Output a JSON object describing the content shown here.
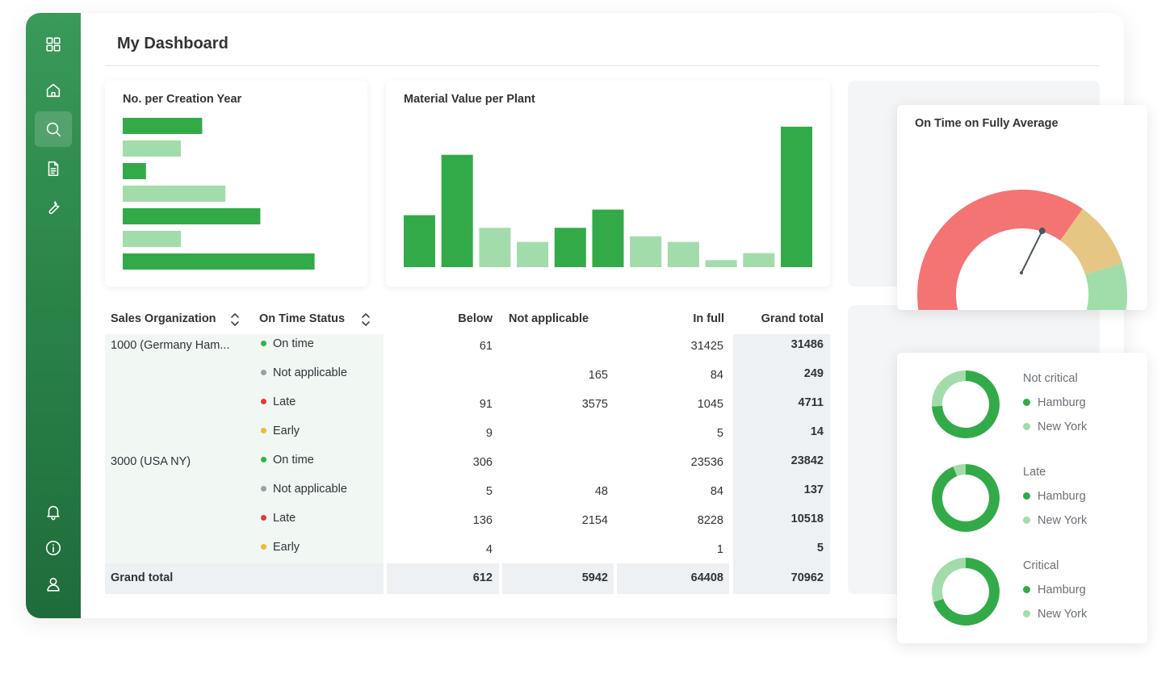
{
  "page": {
    "title": "My Dashboard"
  },
  "nav": {
    "top": [
      {
        "name": "dashboard-grid-icon"
      },
      {
        "name": "home-icon"
      },
      {
        "name": "search-icon",
        "active": true
      },
      {
        "name": "document-icon"
      },
      {
        "name": "wrench-icon"
      }
    ],
    "bottom": [
      {
        "name": "bell-icon"
      },
      {
        "name": "info-icon"
      },
      {
        "name": "user-icon"
      }
    ]
  },
  "colors": {
    "dark_green": "#33aa48",
    "light_green": "#a3dcab",
    "red": "#f47373",
    "amber": "#e5c683",
    "gauge_green": "#a0ddaa"
  },
  "chart_data": [
    {
      "type": "bar",
      "orientation": "horizontal",
      "title": "No. per Creation Year",
      "values": [
        41,
        30,
        12,
        53,
        71,
        30,
        99
      ],
      "shade": [
        "dark",
        "light",
        "dark",
        "light",
        "dark",
        "light",
        "dark"
      ],
      "xlim": [
        0,
        100
      ]
    },
    {
      "type": "bar",
      "title": "Material Value per Plant",
      "values": [
        37,
        80,
        28,
        18,
        28,
        41,
        22,
        18,
        5,
        10,
        100
      ],
      "shade": [
        "dark",
        "dark",
        "light",
        "light",
        "dark",
        "dark",
        "light",
        "light",
        "light",
        "light",
        "dark"
      ],
      "ylim": [
        0,
        100
      ]
    },
    {
      "type": "gauge",
      "title": "On Time on Fully Average",
      "segments": [
        {
          "from": 0,
          "to": 0.66,
          "color": "#f47373"
        },
        {
          "from": 0.66,
          "to": 0.83,
          "color": "#e5c683"
        },
        {
          "from": 0.83,
          "to": 1,
          "color": "#a0ddaa"
        }
      ],
      "needle": 0.62
    },
    {
      "type": "pie",
      "donuts": [
        {
          "title": "Not critical",
          "series": [
            {
              "name": "Hamburg",
              "value": 0.74
            },
            {
              "name": "New York",
              "value": 0.26
            }
          ]
        },
        {
          "title": "Late",
          "series": [
            {
              "name": "Hamburg",
              "value": 0.94
            },
            {
              "name": "New York",
              "value": 0.06
            }
          ]
        },
        {
          "title": "Critical",
          "series": [
            {
              "name": "Hamburg",
              "value": 0.7
            },
            {
              "name": "New York",
              "value": 0.3
            }
          ]
        }
      ]
    }
  ],
  "table": {
    "headers": [
      "Sales Organization",
      "On Time Status",
      "Below",
      "Not applicable",
      "In full",
      "Grand total"
    ],
    "groups": [
      {
        "org": "1000 (Germany Ham...",
        "rows": [
          {
            "status": "On time",
            "color": "#2fb344",
            "below": "61",
            "na": "",
            "full": "31425",
            "total": "31486"
          },
          {
            "status": "Not applicable",
            "color": "#9aa0a6",
            "below": "",
            "na": "165",
            "full": "84",
            "total": "249"
          },
          {
            "status": "Late",
            "color": "#e53935",
            "below": "91",
            "na": "3575",
            "full": "1045",
            "total": "4711"
          },
          {
            "status": "Early",
            "color": "#f5b731",
            "below": "9",
            "na": "",
            "full": "5",
            "total": "14"
          }
        ]
      },
      {
        "org": "3000 (USA NY)",
        "rows": [
          {
            "status": "On time",
            "color": "#2fb344",
            "below": "306",
            "na": "",
            "full": "23536",
            "total": "23842"
          },
          {
            "status": "Not applicable",
            "color": "#9aa0a6",
            "below": "5",
            "na": "48",
            "full": "84",
            "total": "137"
          },
          {
            "status": "Late",
            "color": "#e53935",
            "below": "136",
            "na": "2154",
            "full": "8228",
            "total": "10518"
          },
          {
            "status": "Early",
            "color": "#f5b731",
            "below": "4",
            "na": "",
            "full": "1",
            "total": "5"
          }
        ]
      }
    ],
    "footer": {
      "label": "Grand total",
      "below": "612",
      "na": "5942",
      "full": "64408",
      "total": "70962"
    }
  }
}
